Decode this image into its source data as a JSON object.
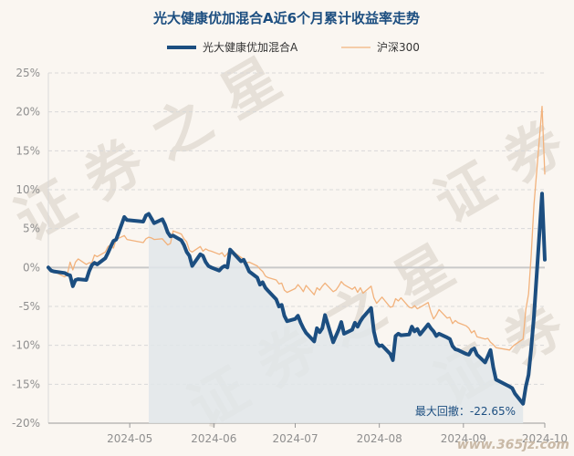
{
  "watermark": "证券之星",
  "site_mark": "www.365jz.com",
  "colors": {
    "fund": "#1c4e80",
    "index": "#f2b27c",
    "area": "#e1e6ea",
    "grid": "#d9d9d9",
    "zero": "#c9c9c9",
    "axis_text": "#8f8f8f",
    "title": "#1c4e80",
    "background": "#faf6f1"
  },
  "chart_data": {
    "type": "line",
    "title": "光大健康优加混合A近6个月累计收益率走势",
    "xlabel": "",
    "ylabel": "",
    "y_unit": "%",
    "ylim": [
      -20,
      25
    ],
    "yticks": [
      -20,
      -15,
      -10,
      -5,
      0,
      5,
      10,
      15,
      20,
      25
    ],
    "ytick_labels": [
      "-20%",
      "-15%",
      "-10%",
      "-5%",
      "0%",
      "5%",
      "10%",
      "15%",
      "20%",
      "25%"
    ],
    "x_start": "2024-04-01",
    "x_end": "2024-10-01",
    "xticks": [
      "2024-05-01",
      "2024-06-01",
      "2024-07-01",
      "2024-08-01",
      "2024-09-01",
      "2024-10-01"
    ],
    "xtick_labels": [
      "2024-05",
      "2024-06",
      "2024-07",
      "2024-08",
      "2024-09",
      "2024-10"
    ],
    "grid": true,
    "legend_position": "top",
    "drawdown": {
      "label": "最大回撤：-22.65%",
      "start": "2024-05-08",
      "end": "2024-09-23"
    },
    "series": [
      {
        "name": "光大健康优加混合A",
        "color": "#1c4e80",
        "points": [
          [
            "2024-04-01",
            0.0
          ],
          [
            "2024-04-02",
            -0.4
          ],
          [
            "2024-04-03",
            -0.5
          ],
          [
            "2024-04-07",
            -0.7
          ],
          [
            "2024-04-08",
            -0.9
          ],
          [
            "2024-04-09",
            -1.0
          ],
          [
            "2024-04-10",
            -2.4
          ],
          [
            "2024-04-11",
            -1.6
          ],
          [
            "2024-04-12",
            -1.5
          ],
          [
            "2024-04-15",
            -1.6
          ],
          [
            "2024-04-16",
            -0.5
          ],
          [
            "2024-04-17",
            0.3
          ],
          [
            "2024-04-18",
            0.6
          ],
          [
            "2024-04-19",
            0.4
          ],
          [
            "2024-04-22",
            1.2
          ],
          [
            "2024-04-23",
            1.9
          ],
          [
            "2024-04-24",
            2.7
          ],
          [
            "2024-04-25",
            3.4
          ],
          [
            "2024-04-26",
            3.6
          ],
          [
            "2024-04-29",
            6.5
          ],
          [
            "2024-04-30",
            6.1
          ],
          [
            "2024-05-06",
            5.9
          ],
          [
            "2024-05-07",
            6.7
          ],
          [
            "2024-05-08",
            6.9
          ],
          [
            "2024-05-09",
            6.3
          ],
          [
            "2024-05-10",
            5.7
          ],
          [
            "2024-05-13",
            6.2
          ],
          [
            "2024-05-14",
            5.5
          ],
          [
            "2024-05-15",
            4.5
          ],
          [
            "2024-05-16",
            4.0
          ],
          [
            "2024-05-17",
            4.1
          ],
          [
            "2024-05-20",
            3.5
          ],
          [
            "2024-05-21",
            2.9
          ],
          [
            "2024-05-22",
            2.0
          ],
          [
            "2024-05-23",
            1.5
          ],
          [
            "2024-05-24",
            0.2
          ],
          [
            "2024-05-27",
            1.7
          ],
          [
            "2024-05-28",
            1.5
          ],
          [
            "2024-05-29",
            0.7
          ],
          [
            "2024-05-30",
            0.2
          ],
          [
            "2024-05-31",
            0.0
          ],
          [
            "2024-06-03",
            -0.4
          ],
          [
            "2024-06-04",
            0.0
          ],
          [
            "2024-06-05",
            0.2
          ],
          [
            "2024-06-06",
            0.0
          ],
          [
            "2024-06-07",
            2.3
          ],
          [
            "2024-06-11",
            0.8
          ],
          [
            "2024-06-12",
            1.0
          ],
          [
            "2024-06-13",
            0.3
          ],
          [
            "2024-06-14",
            -0.5
          ],
          [
            "2024-06-17",
            -1.3
          ],
          [
            "2024-06-18",
            -2.2
          ],
          [
            "2024-06-19",
            -1.9
          ],
          [
            "2024-06-20",
            -2.6
          ],
          [
            "2024-06-21",
            -3.0
          ],
          [
            "2024-06-24",
            -4.1
          ],
          [
            "2024-06-25",
            -5.0
          ],
          [
            "2024-06-26",
            -4.8
          ],
          [
            "2024-06-27",
            -6.2
          ],
          [
            "2024-06-28",
            -6.9
          ],
          [
            "2024-07-01",
            -6.6
          ],
          [
            "2024-07-02",
            -6.2
          ],
          [
            "2024-07-03",
            -7.1
          ],
          [
            "2024-07-04",
            -7.8
          ],
          [
            "2024-07-05",
            -8.4
          ],
          [
            "2024-07-08",
            -9.5
          ],
          [
            "2024-07-09",
            -7.8
          ],
          [
            "2024-07-10",
            -8.3
          ],
          [
            "2024-07-11",
            -7.8
          ],
          [
            "2024-07-12",
            -6.1
          ],
          [
            "2024-07-15",
            -9.6
          ],
          [
            "2024-07-16",
            -8.8
          ],
          [
            "2024-07-17",
            -8.0
          ],
          [
            "2024-07-18",
            -7.0
          ],
          [
            "2024-07-19",
            -8.5
          ],
          [
            "2024-07-22",
            -8.0
          ],
          [
            "2024-07-23",
            -7.1
          ],
          [
            "2024-07-24",
            -7.6
          ],
          [
            "2024-07-25",
            -6.9
          ],
          [
            "2024-07-26",
            -6.4
          ],
          [
            "2024-07-29",
            -5.2
          ],
          [
            "2024-07-30",
            -8.2
          ],
          [
            "2024-07-31",
            -9.7
          ],
          [
            "2024-08-01",
            -10.1
          ],
          [
            "2024-08-02",
            -10.0
          ],
          [
            "2024-08-05",
            -11.1
          ],
          [
            "2024-08-06",
            -11.9
          ],
          [
            "2024-08-07",
            -8.8
          ],
          [
            "2024-08-08",
            -8.5
          ],
          [
            "2024-08-09",
            -8.7
          ],
          [
            "2024-08-12",
            -8.6
          ],
          [
            "2024-08-13",
            -7.6
          ],
          [
            "2024-08-14",
            -8.2
          ],
          [
            "2024-08-15",
            -7.9
          ],
          [
            "2024-08-16",
            -8.6
          ],
          [
            "2024-08-19",
            -7.3
          ],
          [
            "2024-08-20",
            -7.8
          ],
          [
            "2024-08-21",
            -8.2
          ],
          [
            "2024-08-22",
            -8.8
          ],
          [
            "2024-08-23",
            -8.5
          ],
          [
            "2024-08-26",
            -9.0
          ],
          [
            "2024-08-27",
            -9.2
          ],
          [
            "2024-08-28",
            -10.1
          ],
          [
            "2024-08-29",
            -10.5
          ],
          [
            "2024-08-30",
            -10.6
          ],
          [
            "2024-09-02",
            -11.1
          ],
          [
            "2024-09-03",
            -11.2
          ],
          [
            "2024-09-04",
            -10.6
          ],
          [
            "2024-09-05",
            -10.4
          ],
          [
            "2024-09-06",
            -11.2
          ],
          [
            "2024-09-09",
            -12.2
          ],
          [
            "2024-09-10",
            -11.4
          ],
          [
            "2024-09-11",
            -10.6
          ],
          [
            "2024-09-12",
            -12.8
          ],
          [
            "2024-09-13",
            -14.4
          ],
          [
            "2024-09-18",
            -15.3
          ],
          [
            "2024-09-19",
            -15.5
          ],
          [
            "2024-09-20",
            -16.2
          ],
          [
            "2024-09-23",
            -17.5
          ],
          [
            "2024-09-24",
            -15.3
          ],
          [
            "2024-09-25",
            -13.8
          ],
          [
            "2024-09-26",
            -10.4
          ],
          [
            "2024-09-27",
            -6.3
          ],
          [
            "2024-09-30",
            9.5
          ],
          [
            "2024-10-01",
            1.0
          ]
        ]
      },
      {
        "name": "沪深300",
        "color": "#f2b27c",
        "points": [
          [
            "2024-04-01",
            0.0
          ],
          [
            "2024-04-02",
            -0.2
          ],
          [
            "2024-04-03",
            -0.5
          ],
          [
            "2024-04-07",
            -1.2
          ],
          [
            "2024-04-08",
            -0.9
          ],
          [
            "2024-04-09",
            0.7
          ],
          [
            "2024-04-10",
            -0.3
          ],
          [
            "2024-04-11",
            0.7
          ],
          [
            "2024-04-12",
            1.1
          ],
          [
            "2024-04-15",
            0.4
          ],
          [
            "2024-04-16",
            0.6
          ],
          [
            "2024-04-17",
            0.6
          ],
          [
            "2024-04-18",
            1.6
          ],
          [
            "2024-04-19",
            1.4
          ],
          [
            "2024-04-22",
            2.0
          ],
          [
            "2024-04-23",
            2.7
          ],
          [
            "2024-04-24",
            2.9
          ],
          [
            "2024-04-25",
            2.5
          ],
          [
            "2024-04-26",
            3.6
          ],
          [
            "2024-04-29",
            4.1
          ],
          [
            "2024-04-30",
            3.6
          ],
          [
            "2024-05-06",
            3.2
          ],
          [
            "2024-05-07",
            3.7
          ],
          [
            "2024-05-08",
            3.9
          ],
          [
            "2024-05-09",
            3.8
          ],
          [
            "2024-05-10",
            3.6
          ],
          [
            "2024-05-13",
            3.7
          ],
          [
            "2024-05-14",
            3.3
          ],
          [
            "2024-05-15",
            2.9
          ],
          [
            "2024-05-16",
            3.1
          ],
          [
            "2024-05-17",
            4.7
          ],
          [
            "2024-05-20",
            4.3
          ],
          [
            "2024-05-21",
            3.7
          ],
          [
            "2024-05-22",
            3.3
          ],
          [
            "2024-05-23",
            2.2
          ],
          [
            "2024-05-24",
            2.0
          ],
          [
            "2024-05-27",
            2.7
          ],
          [
            "2024-05-28",
            2.1
          ],
          [
            "2024-05-29",
            2.4
          ],
          [
            "2024-05-30",
            2.2
          ],
          [
            "2024-05-31",
            2.1
          ],
          [
            "2024-06-03",
            1.7
          ],
          [
            "2024-06-04",
            1.9
          ],
          [
            "2024-06-05",
            1.4
          ],
          [
            "2024-06-06",
            1.8
          ],
          [
            "2024-06-07",
            2.3
          ],
          [
            "2024-06-11",
            1.3
          ],
          [
            "2024-06-12",
            1.1
          ],
          [
            "2024-06-13",
            0.6
          ],
          [
            "2024-06-14",
            0.7
          ],
          [
            "2024-06-17",
            0.2
          ],
          [
            "2024-06-18",
            -0.2
          ],
          [
            "2024-06-19",
            -0.5
          ],
          [
            "2024-06-20",
            -1.1
          ],
          [
            "2024-06-21",
            -1.3
          ],
          [
            "2024-06-24",
            -1.6
          ],
          [
            "2024-06-25",
            -2.1
          ],
          [
            "2024-06-26",
            -2.0
          ],
          [
            "2024-06-27",
            -2.9
          ],
          [
            "2024-06-28",
            -3.2
          ],
          [
            "2024-07-01",
            -2.7
          ],
          [
            "2024-07-02",
            -2.2
          ],
          [
            "2024-07-03",
            -2.6
          ],
          [
            "2024-07-04",
            -3.1
          ],
          [
            "2024-07-05",
            -2.3
          ],
          [
            "2024-07-08",
            -3.5
          ],
          [
            "2024-07-09",
            -2.6
          ],
          [
            "2024-07-10",
            -2.9
          ],
          [
            "2024-07-11",
            -2.4
          ],
          [
            "2024-07-12",
            -2.0
          ],
          [
            "2024-07-15",
            -3.1
          ],
          [
            "2024-07-16",
            -2.9
          ],
          [
            "2024-07-17",
            -2.4
          ],
          [
            "2024-07-18",
            -1.8
          ],
          [
            "2024-07-19",
            -2.2
          ],
          [
            "2024-07-22",
            -2.8
          ],
          [
            "2024-07-23",
            -2.5
          ],
          [
            "2024-07-24",
            -3.2
          ],
          [
            "2024-07-25",
            -2.6
          ],
          [
            "2024-07-26",
            -3.3
          ],
          [
            "2024-07-29",
            -2.4
          ],
          [
            "2024-07-30",
            -3.9
          ],
          [
            "2024-07-31",
            -4.6
          ],
          [
            "2024-08-01",
            -4.2
          ],
          [
            "2024-08-02",
            -3.8
          ],
          [
            "2024-08-05",
            -5.1
          ],
          [
            "2024-08-06",
            -5.0
          ],
          [
            "2024-08-07",
            -4.0
          ],
          [
            "2024-08-08",
            -4.3
          ],
          [
            "2024-08-09",
            -3.9
          ],
          [
            "2024-08-12",
            -5.1
          ],
          [
            "2024-08-13",
            -5.2
          ],
          [
            "2024-08-14",
            -4.9
          ],
          [
            "2024-08-15",
            -5.3
          ],
          [
            "2024-08-16",
            -5.1
          ],
          [
            "2024-08-19",
            -4.5
          ],
          [
            "2024-08-20",
            -5.7
          ],
          [
            "2024-08-21",
            -6.6
          ],
          [
            "2024-08-22",
            -6.1
          ],
          [
            "2024-08-23",
            -5.4
          ],
          [
            "2024-08-26",
            -6.5
          ],
          [
            "2024-08-27",
            -6.4
          ],
          [
            "2024-08-28",
            -7.2
          ],
          [
            "2024-08-29",
            -6.8
          ],
          [
            "2024-08-30",
            -7.1
          ],
          [
            "2024-09-02",
            -7.5
          ],
          [
            "2024-09-03",
            -7.8
          ],
          [
            "2024-09-04",
            -8.4
          ],
          [
            "2024-09-05",
            -8.1
          ],
          [
            "2024-09-06",
            -8.9
          ],
          [
            "2024-09-09",
            -9.2
          ],
          [
            "2024-09-10",
            -9.1
          ],
          [
            "2024-09-11",
            -9.6
          ],
          [
            "2024-09-12",
            -9.9
          ],
          [
            "2024-09-13",
            -10.3
          ],
          [
            "2024-09-18",
            -10.6
          ],
          [
            "2024-09-19",
            -10.2
          ],
          [
            "2024-09-20",
            -9.9
          ],
          [
            "2024-09-23",
            -9.2
          ],
          [
            "2024-09-24",
            -5.4
          ],
          [
            "2024-09-25",
            -3.4
          ],
          [
            "2024-09-26",
            1.6
          ],
          [
            "2024-09-27",
            8.0
          ],
          [
            "2024-09-30",
            20.7
          ],
          [
            "2024-10-01",
            12.0
          ]
        ]
      }
    ]
  }
}
